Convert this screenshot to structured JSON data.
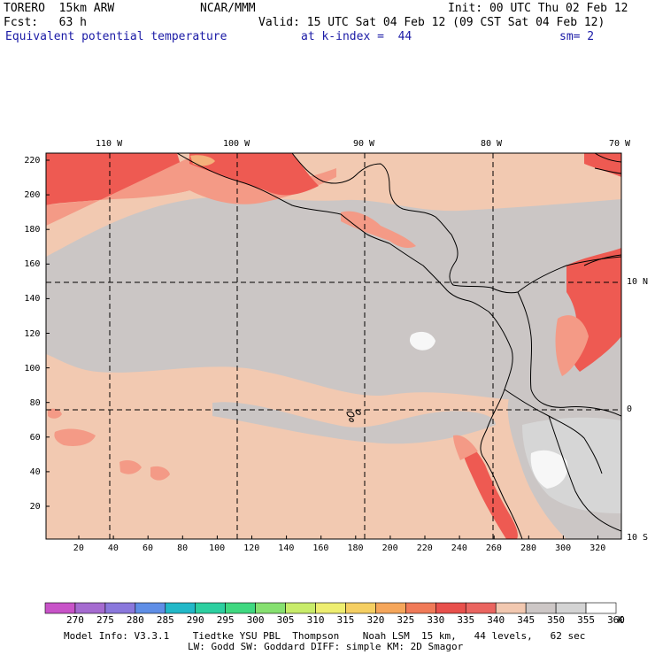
{
  "header": {
    "model": "TORERO  15km ARW",
    "agency": "NCAR/MMM",
    "init": "Init: 00 UTC Thu 02 Feb 12",
    "fcst": "Fcst:   63 h",
    "valid": "Valid: 15 UTC Sat 04 Feb 12 (09 CST Sat 04 Feb 12)",
    "field": "Equivalent potential temperature",
    "level": "at k-index =  44",
    "smooth": "sm= 2"
  },
  "axes": {
    "top_lon_labels": [
      "110 W",
      "100 W",
      "90 W",
      "80 W",
      "70 W"
    ],
    "right_lat_labels": [
      "10 N",
      "0",
      "10 S"
    ],
    "left_grid_labels": [
      "220",
      "200",
      "180",
      "160",
      "140",
      "120",
      "100",
      "80",
      "60",
      "40",
      "20"
    ],
    "bottom_grid_labels": [
      "20",
      "40",
      "60",
      "80",
      "100",
      "120",
      "140",
      "160",
      "180",
      "200",
      "220",
      "240",
      "260",
      "280",
      "300",
      "320"
    ]
  },
  "colorbar": {
    "labels": [
      "270",
      "275",
      "280",
      "285",
      "290",
      "295",
      "300",
      "305",
      "310",
      "315",
      "320",
      "325",
      "330",
      "335",
      "340",
      "345",
      "350",
      "355",
      "360"
    ],
    "unit": "K",
    "colors": [
      "#c853c8",
      "#a56bd0",
      "#8a78dc",
      "#5f8ee6",
      "#22b8c8",
      "#2ccfa0",
      "#3fd880",
      "#86e070",
      "#c8ec6a",
      "#eeee70",
      "#f5cf62",
      "#f5a65a",
      "#f07a58",
      "#e8504c",
      "#ea6560",
      "#f2c8b0",
      "#cdc7c6",
      "#d4d4d4",
      "#ffffff"
    ]
  },
  "footer": {
    "line1": "Model Info: V3.3.1    Tiedtke YSU PBL  Thompson    Noah LSM  15 km,   44 levels,   62 sec",
    "line2": "LW: Godd SW: Goddard DIFF: simple KM: 2D Smagor"
  },
  "map_colors": {
    "ocean_main": "#f2c9b1",
    "gray_band": "#cbc6c5",
    "light_gray": "#d6d6d6",
    "red": "#ee5a52",
    "salmon": "#f49a86",
    "white": "#f7f7f7",
    "orange": "#f4b07a"
  }
}
